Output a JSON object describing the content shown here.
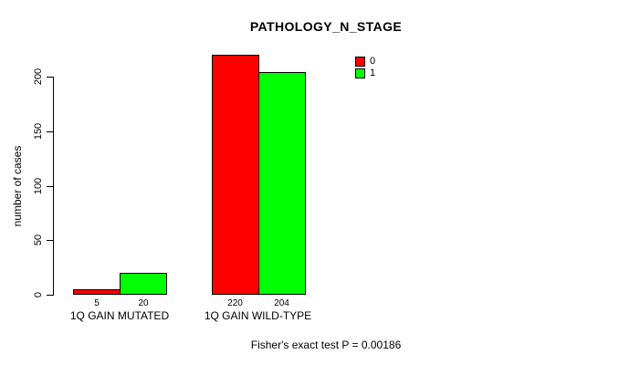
{
  "chart_data": {
    "type": "bar",
    "title": "PATHOLOGY_N_STAGE",
    "xlabel": "",
    "ylabel": "number of cases",
    "ylim": [
      0,
      220
    ],
    "yticks": [
      0,
      50,
      100,
      150,
      200
    ],
    "categories": [
      "1Q GAIN MUTATED",
      "1Q GAIN WILD-TYPE"
    ],
    "series": [
      {
        "name": "0",
        "color": "#FF0000",
        "values": [
          5,
          220
        ]
      },
      {
        "name": "1",
        "color": "#00FF00",
        "values": [
          20,
          204
        ]
      }
    ],
    "bar_value_labels": [
      [
        "5",
        "20"
      ],
      [
        "220",
        "204"
      ]
    ],
    "legend": {
      "position": "top-right",
      "entries": [
        "0",
        "1"
      ]
    },
    "grid": false,
    "bar_border_color": "#000000",
    "axis_color": "#000000",
    "background_color": "#FFFFFF",
    "annotation": "Fisher's exact test P = 0.00186"
  }
}
